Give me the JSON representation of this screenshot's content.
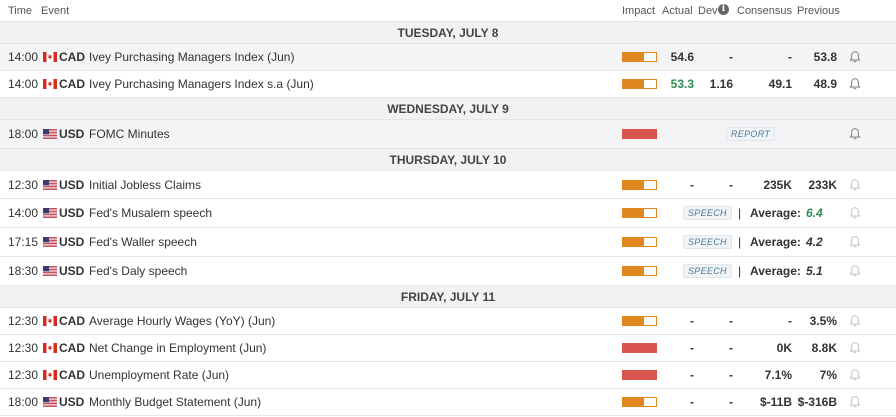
{
  "header": {
    "time": "Time",
    "event": "Event",
    "impact": "Impact",
    "actual": "Actual",
    "dev": "Dev",
    "info": "i",
    "consensus": "Consensus",
    "previous": "Previous"
  },
  "colors": {
    "medium_impact": "#e0881e",
    "high_impact": "#d9534f",
    "positive": "#2e8b57",
    "date_bg": "#f2f2f4"
  },
  "days": [
    {
      "label": "TUESDAY, JULY 8"
    },
    {
      "label": "WEDNESDAY, JULY 9"
    },
    {
      "label": "THURSDAY, JULY 10"
    },
    {
      "label": "FRIDAY, JULY 11"
    }
  ],
  "events": [
    {
      "time": "14:00",
      "flag": "canada-flag-icon",
      "currency": "CAD",
      "name": "Ivey Purchasing Managers Index (Jun)",
      "impact": "medium",
      "actual": "54.6",
      "dev": "-",
      "consensus": "-",
      "previous": "53.8"
    },
    {
      "time": "14:00",
      "flag": "canada-flag-icon",
      "currency": "CAD",
      "name": "Ivey Purchasing Managers Index s.a (Jun)",
      "impact": "medium",
      "actual": "53.3",
      "dev": "1.16",
      "consensus": "49.1",
      "previous": "48.9"
    },
    {
      "time": "18:00",
      "flag": "us-flag-icon",
      "currency": "USD",
      "name": "FOMC Minutes",
      "impact": "high",
      "badge": "REPORT"
    },
    {
      "time": "12:30",
      "flag": "us-flag-icon",
      "currency": "USD",
      "name": "Initial Jobless Claims",
      "impact": "medium",
      "actual": "-",
      "dev": "-",
      "consensus": "235K",
      "previous": "233K"
    },
    {
      "time": "14:00",
      "flag": "us-flag-icon",
      "currency": "USD",
      "name": "Fed's Musalem speech",
      "impact": "medium",
      "badge": "SPEECH",
      "separator": "|",
      "average_label": "Average:",
      "average": "6.4"
    },
    {
      "time": "17:15",
      "flag": "us-flag-icon",
      "currency": "USD",
      "name": "Fed's Waller speech",
      "impact": "medium",
      "badge": "SPEECH",
      "separator": "|",
      "average_label": "Average:",
      "average": "4.2"
    },
    {
      "time": "18:30",
      "flag": "us-flag-icon",
      "currency": "USD",
      "name": "Fed's Daly speech",
      "impact": "medium",
      "badge": "SPEECH",
      "separator": "|",
      "average_label": "Average:",
      "average": "5.1"
    },
    {
      "time": "12:30",
      "flag": "canada-flag-icon",
      "currency": "CAD",
      "name": "Average Hourly Wages (YoY) (Jun)",
      "impact": "medium",
      "actual": "-",
      "dev": "-",
      "consensus": "-",
      "previous": "3.5%"
    },
    {
      "time": "12:30",
      "flag": "canada-flag-icon",
      "currency": "CAD",
      "name": "Net Change in Employment (Jun)",
      "impact": "high",
      "actual": "-",
      "dev": "-",
      "consensus": "0K",
      "previous": "8.8K"
    },
    {
      "time": "12:30",
      "flag": "canada-flag-icon",
      "currency": "CAD",
      "name": "Unemployment Rate (Jun)",
      "impact": "high",
      "actual": "-",
      "dev": "-",
      "consensus": "7.1%",
      "previous": "7%"
    },
    {
      "time": "18:00",
      "flag": "us-flag-icon",
      "currency": "USD",
      "name": "Monthly Budget Statement (Jun)",
      "impact": "medium",
      "actual": "-",
      "dev": "-",
      "consensus": "$-11B",
      "previous": "$-316B"
    }
  ]
}
